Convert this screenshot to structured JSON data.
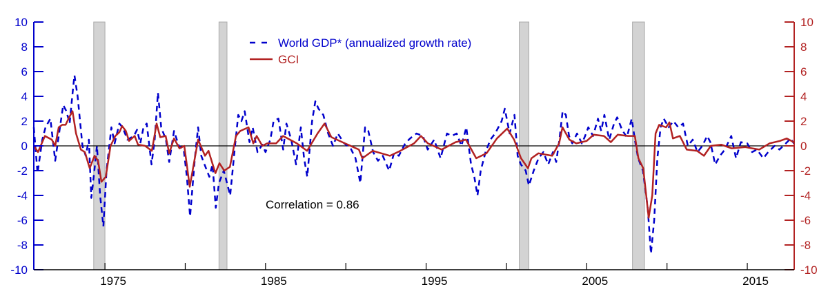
{
  "chart_data": {
    "type": "line",
    "title": "",
    "xlabel": "",
    "ylabel": "",
    "xlim": [
      1970.57,
      2017.92
    ],
    "ylim_left": [
      -10,
      10
    ],
    "ylim_right": [
      -10,
      10
    ],
    "x_tick_labels": [
      "1975",
      "1985",
      "1995",
      "2005",
      "2015"
    ],
    "x_minor_ticks": [
      1975,
      1980,
      1985,
      1990,
      1995,
      2000,
      2005,
      2010,
      2015
    ],
    "y_ticks_left": [
      "10",
      "8",
      "6",
      "4",
      "2",
      "0",
      "-2",
      "-4",
      "-6",
      "-8",
      "-10"
    ],
    "y_ticks_right": [
      "10",
      "8",
      "6",
      "4",
      "2",
      "0",
      "-2",
      "-4",
      "-6",
      "-8",
      "-10"
    ],
    "grid": false,
    "zero_line": true,
    "legend_position": "top-center",
    "colors": {
      "gdp": "#0000cc",
      "gci": "#b22222",
      "recession": "#d3d3d3",
      "left_axis": "#0000cc",
      "right_axis": "#b22222"
    },
    "recessions": [
      [
        1974.3,
        1975.0
      ],
      [
        1982.1,
        1982.6
      ],
      [
        2000.8,
        2001.4
      ],
      [
        2007.85,
        2008.6
      ]
    ],
    "annotation": "Correlation = 0.86",
    "series": [
      {
        "name": "World GDP* (annualized growth rate)",
        "axis": "left",
        "style": "dashed",
        "x": [
          1970.57,
          1970.8,
          1971.1,
          1971.3,
          1971.6,
          1971.9,
          1972.2,
          1972.4,
          1972.6,
          1972.8,
          1973.0,
          1973.1,
          1973.3,
          1973.6,
          1973.8,
          1974.0,
          1974.15,
          1974.3,
          1974.5,
          1974.7,
          1974.9,
          1975.1,
          1975.4,
          1975.6,
          1975.9,
          1976.1,
          1976.4,
          1976.8,
          1977.0,
          1977.2,
          1977.4,
          1977.6,
          1977.9,
          1978.1,
          1978.3,
          1978.5,
          1978.8,
          1979.0,
          1979.3,
          1979.6,
          1979.9,
          1980.1,
          1980.3,
          1980.6,
          1980.8,
          1981.0,
          1981.2,
          1981.5,
          1981.7,
          1981.9,
          1982.1,
          1982.4,
          1982.6,
          1982.8,
          1983.1,
          1983.3,
          1983.5,
          1983.7,
          1984.0,
          1984.2,
          1984.5,
          1984.8,
          1985.0,
          1985.3,
          1985.5,
          1985.8,
          1986.1,
          1986.3,
          1986.6,
          1986.9,
          1987.2,
          1987.4,
          1987.6,
          1987.9,
          1988.1,
          1988.3,
          1988.6,
          1988.9,
          1989.2,
          1989.5,
          1989.9,
          1990.3,
          1990.6,
          1990.9,
          1991.2,
          1991.4,
          1991.7,
          1992.0,
          1992.3,
          1992.7,
          1993.0,
          1993.3,
          1993.7,
          1994.0,
          1994.4,
          1994.8,
          1995.1,
          1995.5,
          1995.9,
          1996.3,
          1996.6,
          1996.9,
          1997.2,
          1997.5,
          1997.8,
          1998.0,
          1998.2,
          1998.4,
          1998.7,
          1999.0,
          1999.3,
          1999.7,
          1999.9,
          2000.2,
          2000.5,
          2000.7,
          2000.9,
          2001.2,
          2001.4,
          2001.7,
          2002.0,
          2002.3,
          2002.6,
          2002.9,
          2003.1,
          2003.3,
          2003.5,
          2003.7,
          2003.9,
          2004.1,
          2004.4,
          2004.7,
          2004.9,
          2005.1,
          2005.4,
          2005.7,
          2005.9,
          2006.1,
          2006.4,
          2006.7,
          2006.9,
          2007.2,
          2007.5,
          2007.8,
          2008.0,
          2008.2,
          2008.5,
          2008.8,
          2009.0,
          2009.2,
          2009.4,
          2009.6,
          2009.8,
          2010.1,
          2010.4,
          2010.7,
          2011.0,
          2011.3,
          2011.6,
          2011.9,
          2012.2,
          2012.5,
          2012.7,
          2013.0,
          2013.3,
          2013.6,
          2014.0,
          2014.3,
          2014.6,
          2015.0,
          2015.3,
          2015.6,
          2016.0,
          2016.3,
          2016.7,
          2017.0,
          2017.4,
          2017.7,
          2017.9
        ],
        "y": [
          1.5,
          -2.2,
          0.5,
          1.5,
          2.2,
          -1.2,
          1.5,
          3.3,
          2.8,
          1.8,
          4.5,
          5.7,
          4.0,
          0,
          -0.8,
          0.5,
          -4.2,
          -2.5,
          0,
          -4,
          -6.5,
          -2,
          1.5,
          0.2,
          1.8,
          1.5,
          0.5,
          0.8,
          1.3,
          0.2,
          1.5,
          1.8,
          -1.5,
          0.5,
          4.3,
          1.5,
          0.5,
          -1.3,
          1.2,
          0,
          -0.2,
          -2.5,
          -5.7,
          -1,
          1.5,
          -0.8,
          -1.5,
          -2.5,
          -1.5,
          -5.0,
          -3.0,
          -2.0,
          -3.0,
          -4.0,
          0,
          2.5,
          2.0,
          2.8,
          0.3,
          1.5,
          -0.5,
          0.1,
          -0.5,
          0.5,
          2.0,
          2.2,
          -0.3,
          1.8,
          0.5,
          -1.5,
          1.5,
          -1.0,
          -2.5,
          2.0,
          3.6,
          3.0,
          2.5,
          1.0,
          0.0,
          1.0,
          0.2,
          -0.2,
          -1.0,
          -3.0,
          1.5,
          1.2,
          -0.5,
          -1.2,
          -0.8,
          -2.0,
          -0.6,
          -0.8,
          0.2,
          0.6,
          1.0,
          0.8,
          -0.3,
          0.5,
          -1.0,
          1.0,
          0.8,
          1.0,
          0.0,
          1.5,
          -1.5,
          -2.5,
          -4.0,
          -2.0,
          -0.5,
          0.5,
          1.0,
          2.0,
          3.0,
          1.0,
          2.5,
          -0.8,
          -1.5,
          -2.0,
          -3.2,
          -2.0,
          -1.0,
          -0.5,
          -1.5,
          -0.5,
          -1.3,
          0.5,
          2.8,
          2.5,
          0.8,
          0.2,
          1.0,
          0.2,
          0.8,
          1.5,
          0.8,
          2.2,
          1.2,
          2.5,
          0.5,
          1.8,
          2.3,
          1.3,
          0.7,
          2.2,
          0.5,
          -1.0,
          -2.0,
          -5.0,
          -8.7,
          -6.0,
          -1.0,
          1.5,
          2.2,
          1.5,
          2.0,
          1.5,
          1.8,
          0.0,
          0.5,
          -0.5,
          0.0,
          0.8,
          0.3,
          -1.5,
          -0.8,
          -0.3,
          0.8,
          -1.0,
          0.3,
          0.2,
          -0.5,
          -0.3,
          -1.0,
          -0.5,
          0.0,
          -0.3,
          0.2,
          0.6,
          0.2
        ]
      },
      {
        "name": "GCI",
        "axis": "right",
        "style": "solid",
        "x": [
          1970.57,
          1970.83,
          1971.26,
          1971.69,
          1971.9,
          1972.12,
          1972.34,
          1972.55,
          1972.77,
          1972.98,
          1973.2,
          1973.5,
          1973.75,
          1974.05,
          1974.35,
          1974.57,
          1974.78,
          1975.05,
          1975.35,
          1975.65,
          1975.9,
          1976.07,
          1976.3,
          1976.5,
          1976.85,
          1977.06,
          1977.5,
          1977.92,
          1978.22,
          1978.44,
          1978.78,
          1979.0,
          1979.3,
          1979.64,
          1979.94,
          1980.28,
          1980.8,
          1981.23,
          1981.45,
          1981.88,
          1982.13,
          1982.43,
          1982.78,
          1983.16,
          1983.42,
          1983.94,
          1984.24,
          1984.45,
          1984.8,
          1985.1,
          1985.66,
          1986.09,
          1986.95,
          1987.59,
          1988.24,
          1988.67,
          1989.1,
          1989.95,
          1990.81,
          1991.03,
          1991.67,
          1992.75,
          1993.39,
          1994.25,
          1994.68,
          1995.11,
          1995.97,
          1996.83,
          1997.48,
          1998.12,
          1998.76,
          1999.41,
          2000.05,
          2000.48,
          2000.91,
          2001.34,
          2001.56,
          2001.99,
          2002.85,
          2003.28,
          2003.49,
          2003.92,
          2004.35,
          2005.0,
          2005.43,
          2006.07,
          2006.5,
          2006.93,
          2007.57,
          2008.0,
          2008.22,
          2008.52,
          2008.86,
          2009.08,
          2009.29,
          2009.51,
          2009.94,
          2010.15,
          2010.37,
          2010.8,
          2011.23,
          2011.87,
          2012.3,
          2012.73,
          2013.38,
          2014.02,
          2014.88,
          2015.74,
          2016.38,
          2017.03,
          2017.46,
          2017.89
        ],
        "y": [
          0,
          -0.5,
          0.8,
          0.5,
          0,
          1.5,
          1.7,
          1.7,
          2.3,
          2.8,
          1.0,
          -0.3,
          -0.5,
          -1.8,
          -0.8,
          -1.2,
          -2.9,
          -2.5,
          0,
          0.8,
          1.1,
          1.6,
          1.2,
          0.4,
          0.8,
          0.1,
          0,
          -0.4,
          1.8,
          0.7,
          0.8,
          -0.6,
          0.6,
          -0.2,
          0,
          -3.3,
          0.5,
          -0.8,
          -0.4,
          -2.2,
          -1.4,
          -2.0,
          -1.7,
          0.8,
          1.2,
          1.5,
          0.2,
          0.8,
          0,
          0.2,
          0.2,
          0.8,
          0.2,
          -0.4,
          1.0,
          1.8,
          0.7,
          0.2,
          -0.3,
          -1.0,
          -0.4,
          -0.8,
          -0.4,
          0.2,
          0.8,
          0.2,
          -0.3,
          0.3,
          0.5,
          -1.0,
          -0.6,
          0.6,
          1.4,
          0.5,
          -1.0,
          -1.8,
          -1.0,
          -0.6,
          -0.8,
          0.2,
          1.5,
          0.5,
          0.2,
          0.4,
          0.9,
          0.8,
          0.3,
          0.9,
          0.8,
          0.8,
          -1.0,
          -1.8,
          -5.8,
          -4.0,
          1.0,
          1.7,
          1.5,
          1.9,
          0.6,
          0.8,
          -0.3,
          -0.4,
          -0.8,
          0.0,
          0.1,
          -0.2,
          -0.1,
          -0.3,
          0.2,
          0.4,
          0.6,
          0.3
        ]
      }
    ]
  }
}
